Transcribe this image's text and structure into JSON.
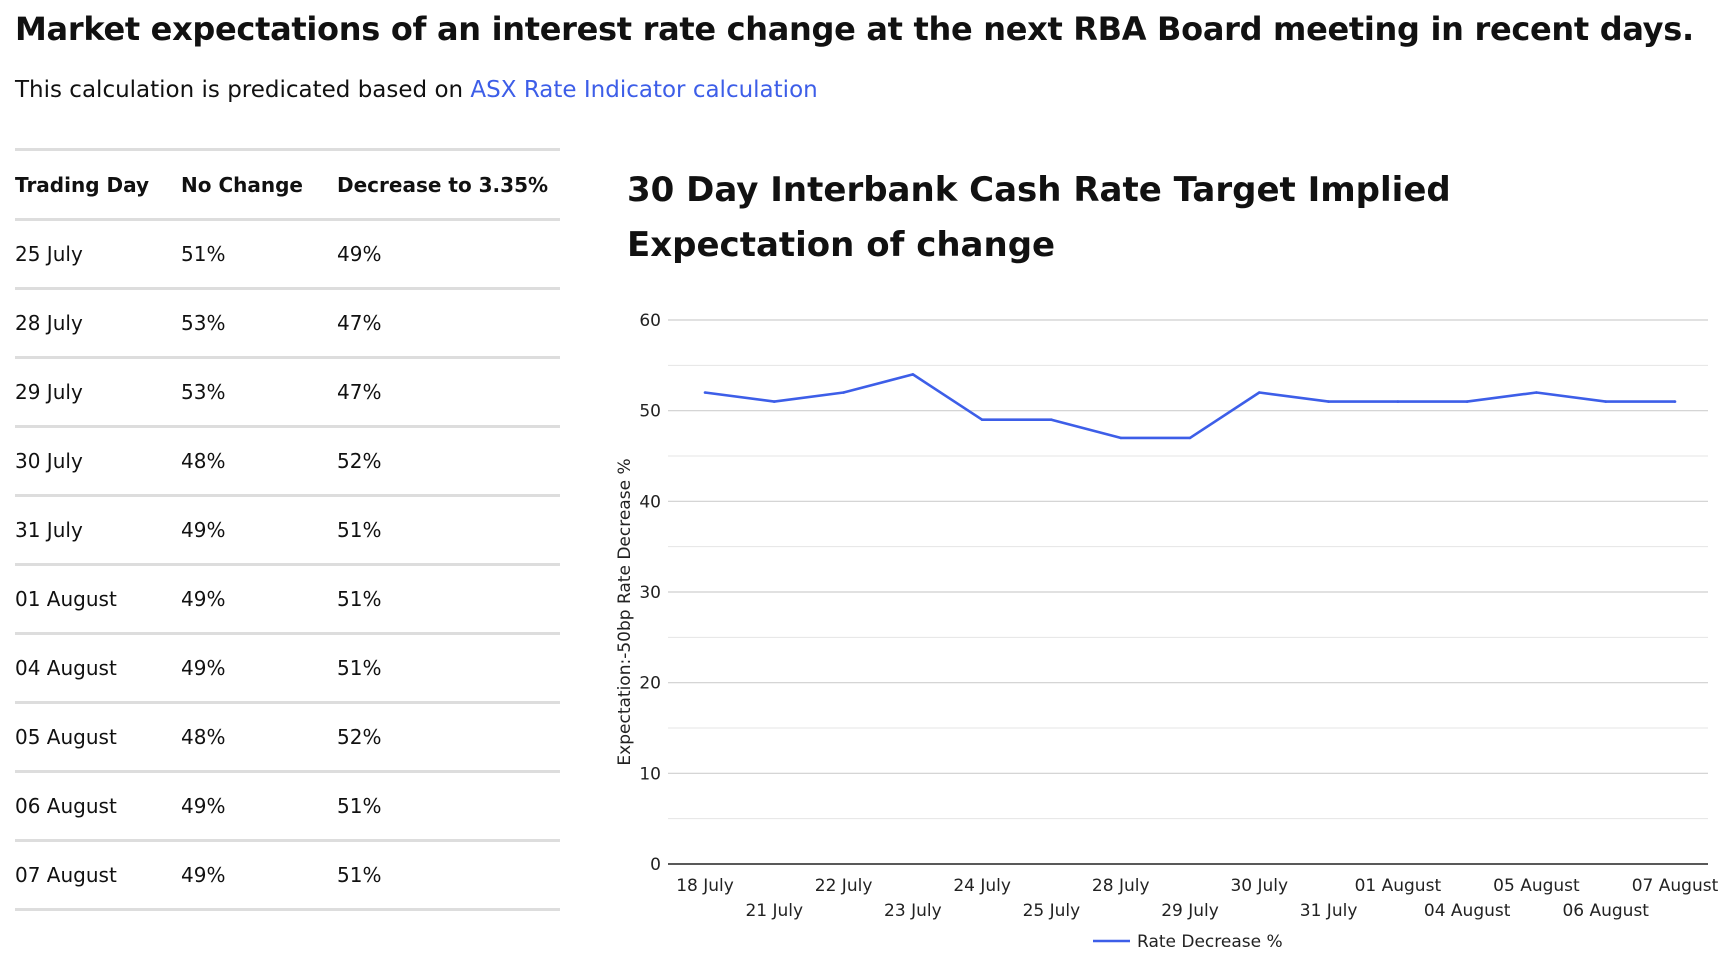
{
  "page": {
    "title": "Market expectations of an interest rate change at the next RBA Board meeting in recent days.",
    "subtitle_prefix": "This calculation is predicated based on ",
    "subtitle_link": "ASX Rate Indicator calculation",
    "link_color": "#3d5ee8"
  },
  "table": {
    "headers": [
      "Trading Day",
      "No Change",
      "Decrease to 3.35%"
    ],
    "rows": [
      [
        "25 July",
        "51%",
        "49%"
      ],
      [
        "28 July",
        "53%",
        "47%"
      ],
      [
        "29 July",
        "53%",
        "47%"
      ],
      [
        "30 July",
        "48%",
        "52%"
      ],
      [
        "31 July",
        "49%",
        "51%"
      ],
      [
        "01 August",
        "49%",
        "51%"
      ],
      [
        "04 August",
        "49%",
        "51%"
      ],
      [
        "05 August",
        "48%",
        "52%"
      ],
      [
        "06 August",
        "49%",
        "51%"
      ],
      [
        "07 August",
        "49%",
        "51%"
      ]
    ]
  },
  "chart_data": {
    "type": "line",
    "title": "30 Day Interbank Cash Rate Target Implied Expectation of change",
    "ylabel": "Expectation:-50bp Rate Decrease %",
    "xlabel": "",
    "ylim": [
      0,
      60
    ],
    "yticks": [
      0,
      10,
      20,
      30,
      40,
      50,
      60
    ],
    "grid": true,
    "legend_position": "bottom",
    "categories": [
      "18 July",
      "21 July",
      "22 July",
      "23 July",
      "24 July",
      "25 July",
      "28 July",
      "29 July",
      "30 July",
      "31 July",
      "01 August",
      "04 August",
      "05 August",
      "06 August",
      "07 August"
    ],
    "series": [
      {
        "name": "Rate Decrease %",
        "color": "#3d5ee8",
        "values": [
          52,
          51,
          52,
          54,
          49,
          49,
          47,
          47,
          52,
          51,
          51,
          51,
          52,
          51,
          51
        ]
      }
    ]
  }
}
